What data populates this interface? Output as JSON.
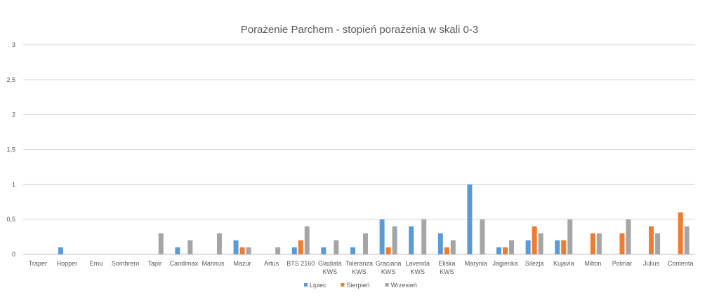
{
  "chart_data": {
    "type": "bar",
    "title": "Porażenie Parchem - stopień porażenia w skali 0-3",
    "xlabel": "",
    "ylabel": "",
    "ylim": [
      0,
      3
    ],
    "yticks": [
      "0",
      "0,5",
      "1",
      "1,5",
      "2",
      "2,5",
      "3"
    ],
    "grid": true,
    "legend_position": "bottom",
    "categories": [
      "Traper",
      "Hopper",
      "Emu",
      "Sombrero",
      "Tapir",
      "Candimax",
      "Marinus",
      "Mazur",
      "Artus",
      "BTS 2160",
      "Gladiata KWS",
      "Toleranza KWS",
      "Graciana KWS",
      "Lavenda KWS",
      "Eliska KWS",
      "Marynia",
      "Jagienka",
      "Silezja",
      "Kujavia",
      "Milton",
      "Polmar",
      "Julius",
      "Contenta"
    ],
    "series": [
      {
        "name": "Lipiec",
        "color": "#5b9bd5",
        "values": [
          0,
          0.1,
          0,
          0,
          0,
          0.1,
          0,
          0.2,
          0,
          0.1,
          0.1,
          0.1,
          0.5,
          0.4,
          0.3,
          1.0,
          0.1,
          0.2,
          0.2,
          0,
          0,
          0,
          0
        ]
      },
      {
        "name": "Sierpień",
        "color": "#ed7d31",
        "values": [
          0,
          0,
          0,
          0,
          0,
          0,
          0,
          0.1,
          0,
          0.2,
          0,
          0,
          0.1,
          0,
          0.1,
          0,
          0.1,
          0.4,
          0.2,
          0.3,
          0.3,
          0.4,
          0.6
        ]
      },
      {
        "name": "Wrzesień",
        "color": "#a5a5a5",
        "values": [
          0,
          0,
          0,
          0,
          0.3,
          0.2,
          0.3,
          0.1,
          0.1,
          0.4,
          0.2,
          0.3,
          0.4,
          0.5,
          0.2,
          0.5,
          0.2,
          0.3,
          0.5,
          0.3,
          0.5,
          0.3,
          0.4
        ]
      }
    ]
  }
}
